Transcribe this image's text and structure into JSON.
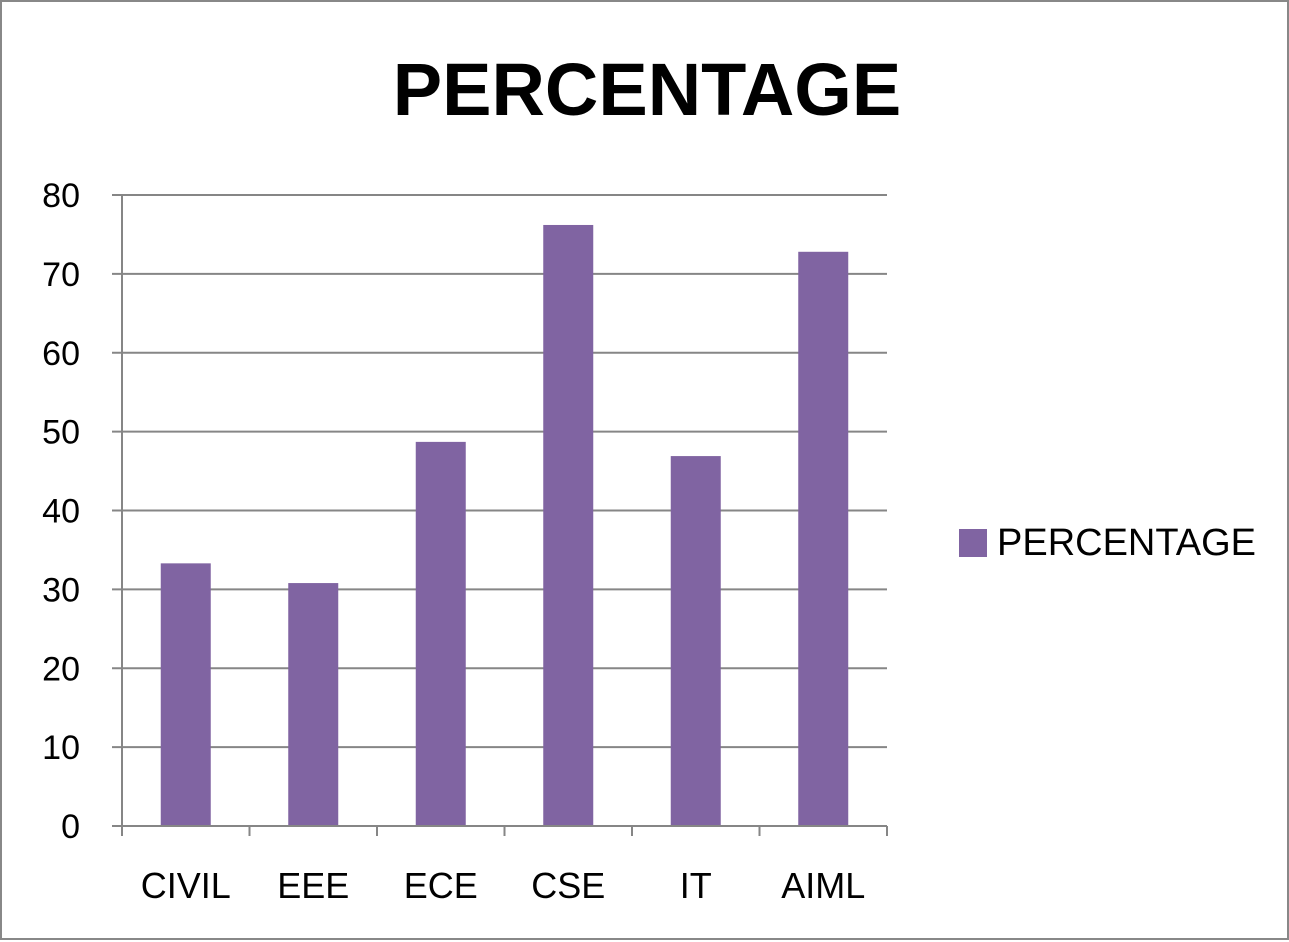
{
  "chart_data": {
    "type": "bar",
    "title": "PERCENTAGE",
    "categories": [
      "CIVIL",
      "EEE",
      "ECE",
      "CSE",
      "IT",
      "AIML"
    ],
    "series": [
      {
        "name": "PERCENTAGE",
        "values": [
          33.3,
          30.8,
          48.7,
          76.2,
          46.9,
          72.8
        ]
      }
    ],
    "xlabel": "",
    "ylabel": "",
    "ylim": [
      0,
      80
    ],
    "yticks": [
      0,
      10,
      20,
      30,
      40,
      50,
      60,
      70,
      80
    ],
    "grid": true,
    "legend_position": "right",
    "colors": {
      "bar": "#8064A2",
      "grid": "#868686",
      "axis": "#868686"
    }
  }
}
